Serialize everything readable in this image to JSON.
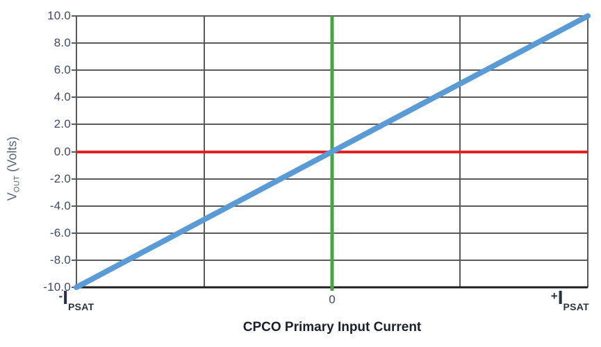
{
  "chart_data": {
    "type": "line",
    "title": "",
    "xlabel": "CPCO Primary Input Current",
    "ylabel": "VOUT (Volts)",
    "ylim": [
      -10.0,
      10.0
    ],
    "y_tick_step": 2.0,
    "y_ticks": [
      "10.0",
      "8.0",
      "6.0",
      "4.0",
      "2.0",
      "0.0",
      "-2.0",
      "-4.0",
      "-6.0",
      "-8.0",
      "-10.0"
    ],
    "x_tick_labels": [
      "-IPSAT",
      "0",
      "+IPSAT"
    ],
    "grid": true,
    "legend": false,
    "v_gridlines_pct": [
      25,
      75
    ],
    "series": [
      {
        "name": "VOUT transfer line",
        "color": "#5B9BD5",
        "points_x": [
          "-IPSAT",
          "+IPSAT"
        ],
        "points_y": [
          -10.0,
          10.0
        ]
      },
      {
        "name": "zero-volt reference line",
        "color": "#DF2323",
        "points_x": [
          "-IPSAT",
          "+IPSAT"
        ],
        "points_y": [
          0.0,
          0.0
        ]
      },
      {
        "name": "zero-current reference line",
        "color": "#45A545",
        "orientation": "vertical",
        "x": "0"
      }
    ]
  },
  "axes": {
    "y_title": {
      "main": "V",
      "sub": "OUT",
      "rest": " (Volts)"
    },
    "x_title": "CPCO Primary Input Current",
    "x_left": {
      "sign": "-",
      "symbol": "I",
      "sub": "PSAT"
    },
    "x_center": {
      "text": "0"
    },
    "x_right": {
      "sign": "+",
      "symbol": "I",
      "sub": "PSAT"
    }
  },
  "colors": {
    "transfer_line": "#5B9BD5",
    "zero_volt_line": "#DF2323",
    "zero_current_line": "#45A545",
    "gridline": "#595959",
    "axis_line": "#1F1F1F",
    "tick_label": "#3E4962",
    "background": "#FFFFFF"
  }
}
